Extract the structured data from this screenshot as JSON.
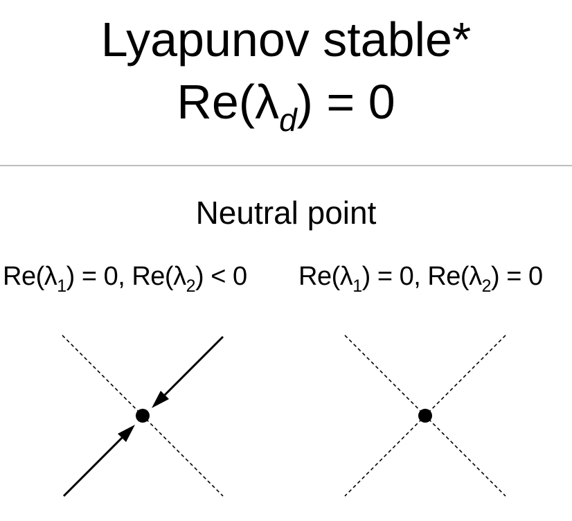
{
  "title": {
    "line1": "Lyapunov stable*",
    "line2_prefix": "Re(λ",
    "line2_sub": "d",
    "line2_suffix": ") = 0"
  },
  "section": {
    "title": "Neutral point"
  },
  "cases": [
    {
      "a_prefix": "Re(λ",
      "a_sub": "1",
      "a_suffix": ") = 0, Re(λ",
      "b_sub": "2",
      "b_suffix": ") < 0"
    },
    {
      "a_prefix": "Re(λ",
      "a_sub": "1",
      "a_suffix": ") = 0, Re(λ",
      "b_sub": "2",
      "b_suffix": ") = 0"
    }
  ],
  "colors": {
    "divider": "#bdbdbd",
    "ink": "#000000"
  }
}
